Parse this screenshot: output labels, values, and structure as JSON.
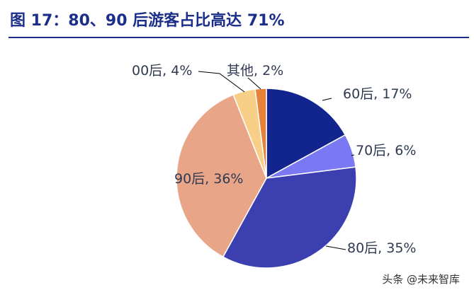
{
  "title": "图 17：80、90 后游客占比高达 71%",
  "watermark": "头条 @未来智库",
  "chart_data": {
    "type": "pie",
    "slices": [
      {
        "name": "60后",
        "value": 17,
        "label": "60后, 17%",
        "color": "#12258f"
      },
      {
        "name": "70后",
        "value": 6,
        "label": "70后, 6%",
        "color": "#7a78f2"
      },
      {
        "name": "80后",
        "value": 35,
        "label": "80后, 35%",
        "color": "#3b3fb0"
      },
      {
        "name": "90后",
        "value": 36,
        "label": "90后, 36%",
        "color": "#e9a588"
      },
      {
        "name": "00后",
        "value": 4,
        "label": "00后, 4%",
        "color": "#f7cf86"
      },
      {
        "name": "其他",
        "value": 2,
        "label": "其他, 2%",
        "color": "#e8813a"
      }
    ],
    "start": "12 o'clock",
    "direction": "clockwise"
  }
}
